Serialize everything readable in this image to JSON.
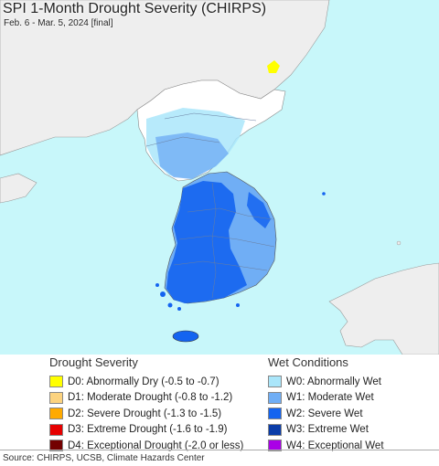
{
  "title": "SPI 1-Month Drought Severity (CHIRPS)",
  "subtitle": "Feb. 6 - Mar. 5, 2024 [final]",
  "map": {
    "ocean_color": "#c8f7fa",
    "land_color": "#ffffff",
    "outside_land_color": "#eeeeee"
  },
  "legend": {
    "drought": {
      "heading": "Drought Severity",
      "items": [
        {
          "code": "D0",
          "label": "D0: Abnormally Dry (-0.5 to -0.7)",
          "color": "#ffff00"
        },
        {
          "code": "D1",
          "label": "D1: Moderate Drought (-0.8 to -1.2)",
          "color": "#fcd37f"
        },
        {
          "code": "D2",
          "label": "D2: Severe Drought (-1.3 to -1.5)",
          "color": "#ffaa00"
        },
        {
          "code": "D3",
          "label": "D3: Extreme Drought (-1.6 to -1.9)",
          "color": "#e60000"
        },
        {
          "code": "D4",
          "label": "D4: Exceptional Drought (-2.0 or less)",
          "color": "#730000"
        }
      ]
    },
    "wet": {
      "heading": "Wet Conditions",
      "items": [
        {
          "code": "W0",
          "label": "W0: Abnormally Wet",
          "color": "#aae6fa"
        },
        {
          "code": "W1",
          "label": "W1: Moderate Wet",
          "color": "#70aef5"
        },
        {
          "code": "W2",
          "label": "W2: Severe Wet",
          "color": "#1464f0"
        },
        {
          "code": "W3",
          "label": "W3: Extreme Wet",
          "color": "#0a3ca8"
        },
        {
          "code": "W4",
          "label": "W4: Exceptional Wet",
          "color": "#aa00e6"
        }
      ]
    }
  },
  "source": "Source: CHIRPS, UCSB, Climate Hazards Center"
}
